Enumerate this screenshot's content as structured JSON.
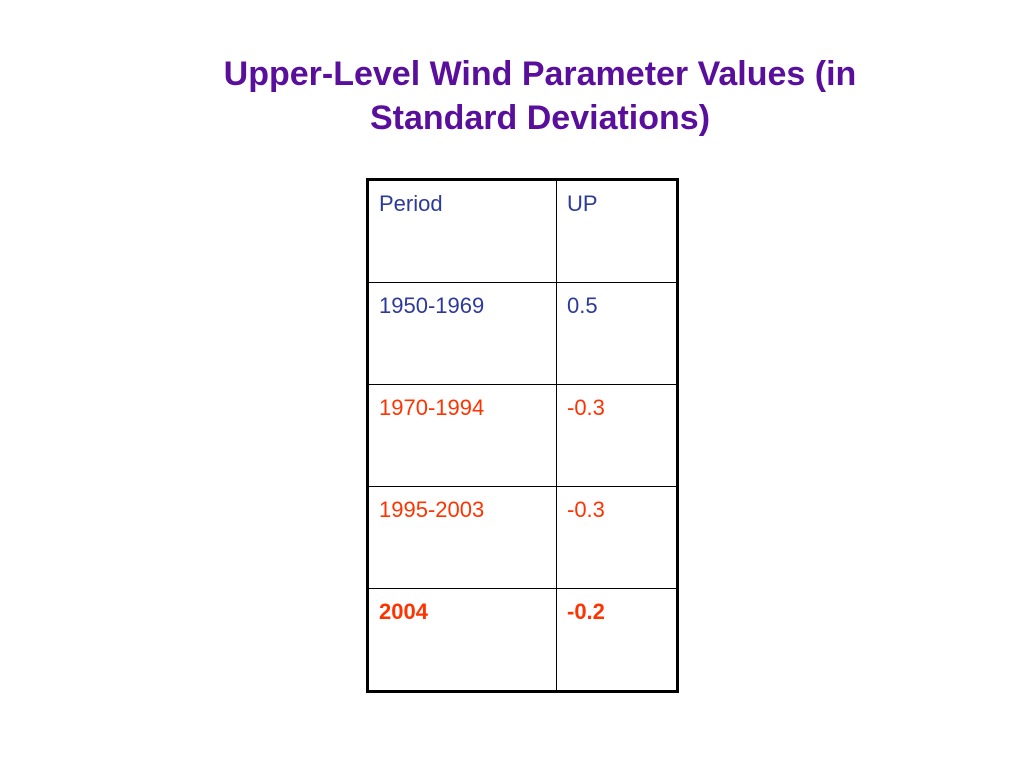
{
  "slide": {
    "title_line1": "Upper-Level Wind Parameter Values (in",
    "title_line2": "Standard Deviations)"
  },
  "table": {
    "headers": [
      "Period",
      "UP"
    ],
    "rows": [
      {
        "period": "1950-1969",
        "up": "0.5",
        "color": "#2e3a9a",
        "bold": false
      },
      {
        "period": "1970-1994",
        "up": "-0.3",
        "color": "#ff3300",
        "bold": false
      },
      {
        "period": "1995-2003",
        "up": "-0.3",
        "color": "#ff3300",
        "bold": false
      },
      {
        "period": "2004",
        "up": "-0.2",
        "color": "#ff3300",
        "bold": true
      }
    ]
  },
  "colors": {
    "title": "#5a0f9c",
    "header_text": "#2e3a9a",
    "highlight": "#ff3300",
    "border": "#000000"
  }
}
